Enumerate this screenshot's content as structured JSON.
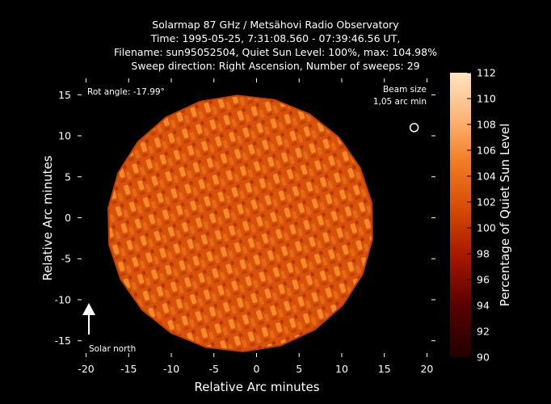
{
  "title_lines": [
    "Solarmap 87 GHz / Metsähovi Radio Observatory",
    "Time: 1995-05-25,  7:31:08.560 - 07:39:46.56 UT,",
    "Filename: sun95052504, Quiet Sun Level: 100%, max: 104.98%",
    "Sweep direction: Right Ascension, Number of sweeps: 29"
  ],
  "annotations": {
    "rot_angle": "Rot angle: -17.99°",
    "beam_size_line1": "Beam size",
    "beam_size_line2": "1,05 arc min",
    "solar_north": "Solar north"
  },
  "colors": {
    "background": "#000000",
    "text": "#ffffff",
    "cmap_low": "#3a0000",
    "cmap_mid": "#d84a06",
    "cmap_high": "#ffe2c2"
  },
  "chart_data": {
    "type": "heatmap",
    "xlabel": "Relative Arc minutes",
    "ylabel": "Relative Arc minutes",
    "xlim": [
      -21,
      21
    ],
    "ylim": [
      -17,
      17
    ],
    "xticks": [
      "-20",
      "-15",
      "-10",
      "-5",
      "0",
      "5",
      "10",
      "15",
      "20"
    ],
    "yticks": [
      "15",
      "10",
      "5",
      "0",
      "-5",
      "-10",
      "-15"
    ],
    "disk_center": [
      -1.9,
      -0.7
    ],
    "disk_radius_arcmin": 15.6,
    "disk_level_range": [
      99,
      105
    ],
    "quiet_sun_level": 100,
    "max_level": 104.98,
    "beam_size_arcmin": 1.05,
    "beam_position": [
      18.5,
      11.0
    ],
    "colorbar": {
      "label": "Percentage of Quiet Sun Level",
      "min": 90,
      "max": 112,
      "ticks": [
        "90",
        "92",
        "94",
        "96",
        "98",
        "100",
        "102",
        "104",
        "106",
        "108",
        "110",
        "112"
      ]
    }
  }
}
